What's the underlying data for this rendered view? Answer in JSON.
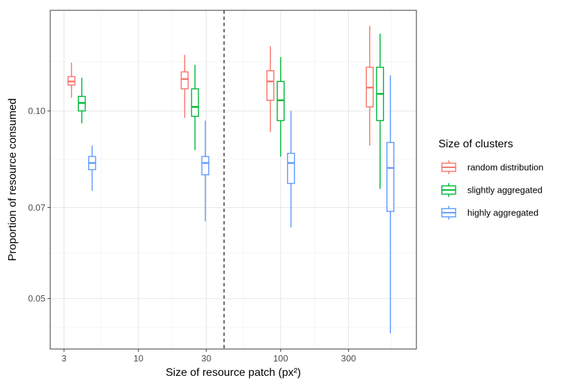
{
  "chart_data": {
    "type": "box",
    "xlabel": "Size of resource patch (px²)",
    "ylabel": "Proportion of resource consumed",
    "x_scale": "log",
    "y_scale": "log",
    "xlim": [
      2.4,
      900
    ],
    "ylim": [
      0.0415,
      0.145
    ],
    "x_ticks": [
      3,
      10,
      30,
      100,
      300
    ],
    "x_tick_labels": [
      "3",
      "10",
      "30",
      "100",
      "300"
    ],
    "y_ticks": [
      0.05,
      0.07,
      0.1
    ],
    "y_tick_labels": [
      "0.05",
      "0.07",
      "0.10"
    ],
    "grid": true,
    "vline": {
      "x": 40,
      "style": "dashed"
    },
    "legend": {
      "title": "Size of clusters",
      "position": "right"
    },
    "categories": [
      4,
      25,
      100,
      500
    ],
    "series": [
      {
        "name": "random distribution",
        "color": "#F8766D",
        "boxes": [
          {
            "x": 4,
            "whisker_low": 0.105,
            "q1": 0.11,
            "median": 0.1115,
            "q3": 0.1135,
            "whisker_high": 0.1195
          },
          {
            "x": 25,
            "whisker_low": 0.0975,
            "q1": 0.1085,
            "median": 0.1125,
            "q3": 0.1155,
            "whisker_high": 0.123
          },
          {
            "x": 100,
            "whisker_low": 0.0925,
            "q1": 0.104,
            "median": 0.1115,
            "q3": 0.116,
            "whisker_high": 0.127
          },
          {
            "x": 500,
            "whisker_low": 0.088,
            "q1": 0.1015,
            "median": 0.109,
            "q3": 0.1175,
            "whisker_high": 0.137
          }
        ]
      },
      {
        "name": "slightly aggregated",
        "color": "#00BA38",
        "boxes": [
          {
            "x": 4,
            "whisker_low": 0.0955,
            "q1": 0.1,
            "median": 0.103,
            "q3": 0.1055,
            "whisker_high": 0.113
          },
          {
            "x": 25,
            "whisker_low": 0.0865,
            "q1": 0.098,
            "median": 0.1015,
            "q3": 0.1085,
            "whisker_high": 0.1185
          },
          {
            "x": 100,
            "whisker_low": 0.0845,
            "q1": 0.0965,
            "median": 0.104,
            "q3": 0.1115,
            "whisker_high": 0.122
          },
          {
            "x": 500,
            "whisker_low": 0.075,
            "q1": 0.0965,
            "median": 0.1065,
            "q3": 0.1175,
            "whisker_high": 0.133
          }
        ]
      },
      {
        "name": "highly aggregated",
        "color": "#619CFF",
        "boxes": [
          {
            "x": 4,
            "whisker_low": 0.0745,
            "q1": 0.0805,
            "median": 0.0825,
            "q3": 0.0845,
            "whisker_high": 0.088
          },
          {
            "x": 25,
            "whisker_low": 0.0665,
            "q1": 0.079,
            "median": 0.0825,
            "q3": 0.0845,
            "whisker_high": 0.0965
          },
          {
            "x": 100,
            "whisker_low": 0.065,
            "q1": 0.0765,
            "median": 0.0825,
            "q3": 0.0855,
            "whisker_high": 0.1
          },
          {
            "x": 500,
            "whisker_low": 0.044,
            "q1": 0.069,
            "median": 0.081,
            "q3": 0.089,
            "whisker_high": 0.114
          }
        ]
      }
    ]
  }
}
